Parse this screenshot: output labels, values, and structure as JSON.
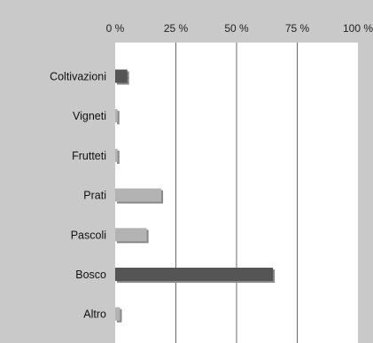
{
  "chart_data": {
    "type": "bar",
    "orientation": "horizontal",
    "categories": [
      "Coltivazioni",
      "Vigneti",
      "Frutteti",
      "Prati",
      "Pascoli",
      "Bosco",
      "Altro"
    ],
    "values": [
      5,
      1,
      1,
      19,
      13,
      65,
      2
    ],
    "value_unit": "%",
    "xlim": [
      0,
      100
    ],
    "xticks": [
      "0 %",
      "25 %",
      "50 %",
      "75 %",
      "100 %"
    ],
    "grid": "vertical",
    "bar_shades": [
      "dark",
      "light",
      "light",
      "light",
      "light",
      "dark",
      "light"
    ]
  },
  "colors": {
    "frame_grey": "#c9c9c9",
    "plot_bg": "#ffffff",
    "bar_dark": "#555555",
    "bar_light": "#b3b3b3",
    "bar_shadow": "#888888",
    "grid": "#444444"
  }
}
